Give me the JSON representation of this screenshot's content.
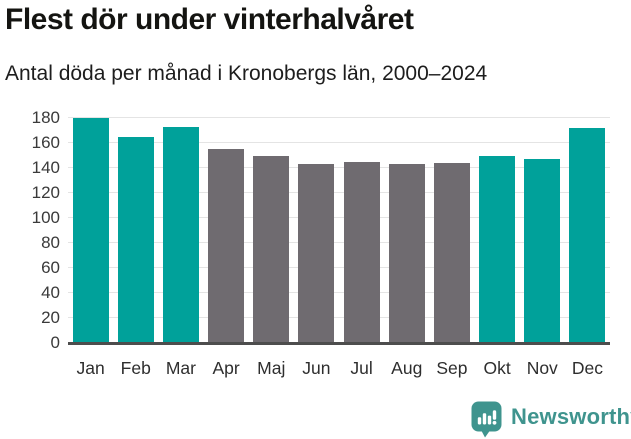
{
  "chart_data": {
    "type": "bar",
    "title": "Flest dör under vinterhalvåret",
    "subtitle": "Antal döda per månad i Kronobergs län, 2000–2024",
    "categories": [
      "Jan",
      "Feb",
      "Mar",
      "Apr",
      "Maj",
      "Jun",
      "Jul",
      "Aug",
      "Sep",
      "Okt",
      "Nov",
      "Dec"
    ],
    "values": [
      180,
      165,
      173,
      155,
      150,
      143,
      145,
      143,
      144,
      150,
      147,
      172
    ],
    "highlighted": [
      true,
      true,
      true,
      false,
      false,
      false,
      false,
      false,
      false,
      true,
      true,
      true
    ],
    "xlabel": "",
    "ylabel": "",
    "ylim": [
      0,
      180
    ],
    "yticks": [
      0,
      20,
      40,
      60,
      80,
      100,
      120,
      140,
      160,
      180
    ],
    "grid": "horizontal",
    "legend": "none",
    "colors": {
      "highlight": "#00a19a",
      "base": "#6f6b70",
      "grid": "#e4e4e4",
      "axis": "#4d4d4d"
    }
  },
  "footer": {
    "brand": "Newsworthy",
    "brand_color": "#3f948e",
    "logo_icon": "bar-chart-speech-bubble-icon"
  }
}
